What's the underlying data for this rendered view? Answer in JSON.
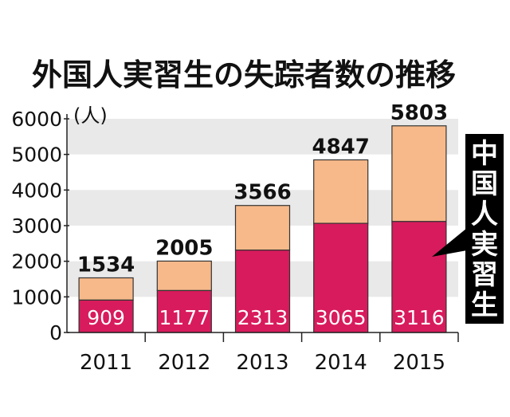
{
  "chart_data": {
    "type": "bar",
    "title": "外国人実習生の失踪者数の推移",
    "unit": "(人)",
    "categories": [
      "2011",
      "2012",
      "2013",
      "2014",
      "2015"
    ],
    "totals": [
      1534,
      2005,
      3566,
      4847,
      5803
    ],
    "series": [
      {
        "name": "中国人実習生",
        "values": [
          909,
          1177,
          2313,
          3065,
          3116
        ],
        "color": "#d81b5c"
      },
      {
        "values": [
          625,
          828,
          1253,
          1782,
          2687
        ],
        "color": "#f7b98a"
      }
    ],
    "yticks": [
      "6000",
      "5000",
      "4000",
      "3000",
      "2000",
      "1000",
      "0"
    ],
    "ylim": [
      0,
      6000
    ],
    "grid": "alternating horizontal bands",
    "legend_placement": "right",
    "legend_chars": [
      "中",
      "国",
      "人",
      "実",
      "習",
      "生"
    ]
  }
}
